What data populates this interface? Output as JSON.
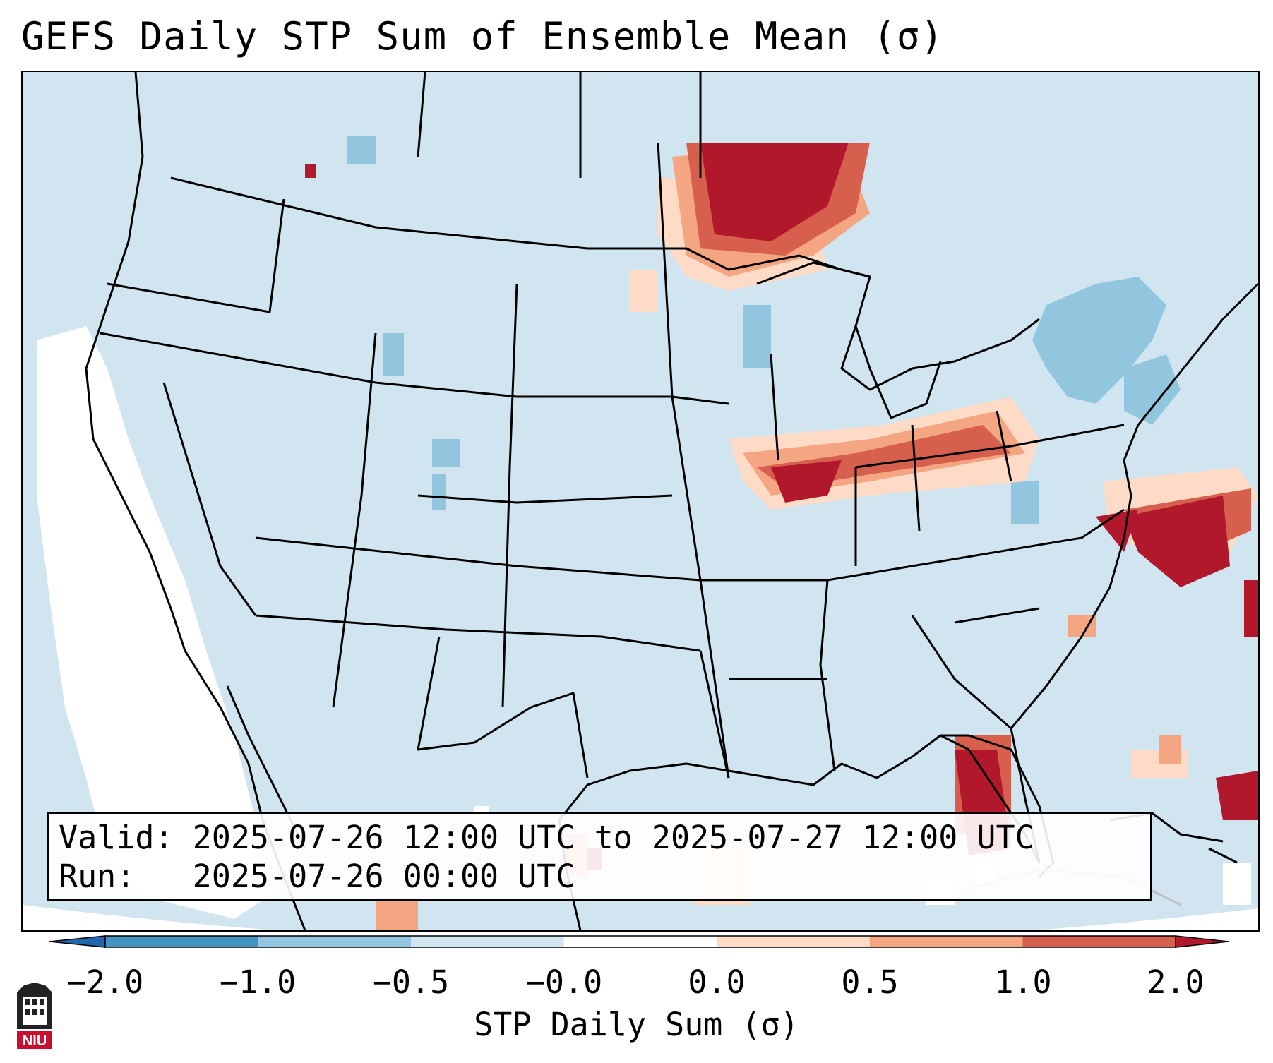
{
  "title": "GEFS Daily STP Sum of Ensemble Mean (σ)",
  "info": {
    "valid_line": "Valid: 2025-07-26 12:00 UTC to 2025-07-27 12:00 UTC",
    "run_line": "Run:   2025-07-26 00:00 UTC"
  },
  "colorbar": {
    "label": "STP Daily Sum (σ)",
    "ticks": [
      "−2.0",
      "−1.0",
      "−0.5",
      "−0.0",
      "0.0",
      "0.5",
      "1.0",
      "2.0"
    ],
    "colors": [
      "#2166ac",
      "#4393c3",
      "#92c5de",
      "#d1e5f0",
      "#ffffff",
      "#fddbc7",
      "#f4a582",
      "#d6604d",
      "#b2182b"
    ]
  },
  "logo": {
    "text": "NIU",
    "color": "#c8102e"
  },
  "map": {
    "background": "#d1e5f0",
    "outside_domain": "#ffffff"
  }
}
